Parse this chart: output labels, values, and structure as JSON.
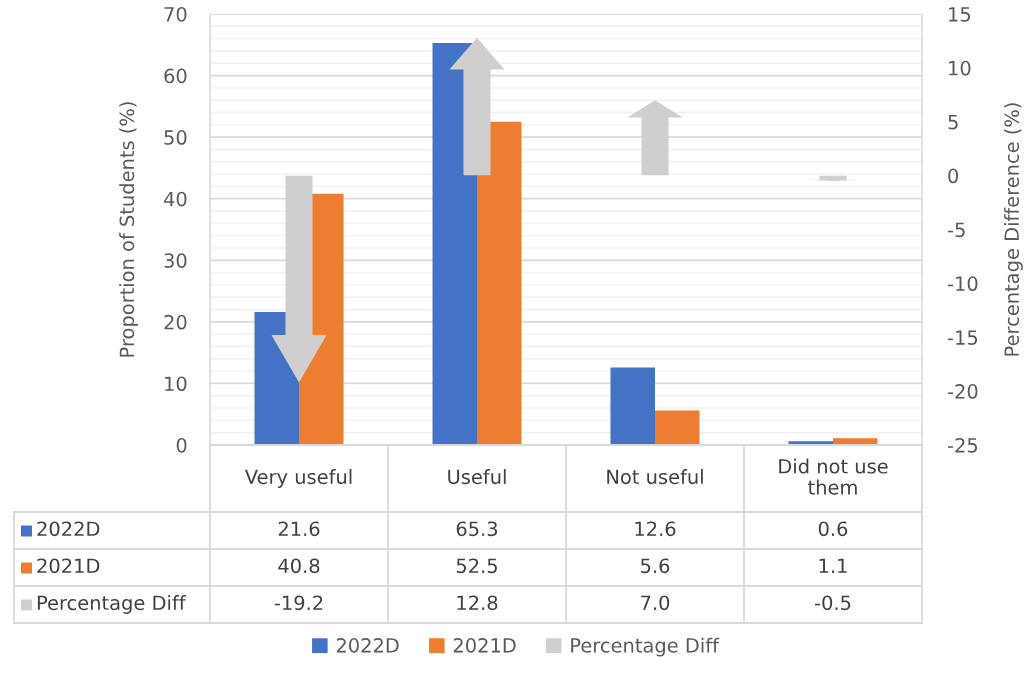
{
  "chart_data": {
    "type": "bar",
    "categories": [
      "Very useful",
      "Useful",
      "Not useful",
      "Did not use them"
    ],
    "series": [
      {
        "name": "2022D",
        "color": "#4472c4",
        "values": [
          21.6,
          65.3,
          12.6,
          0.6
        ],
        "value_labels": [
          "21.6",
          "65.3",
          "12.6",
          "0.6"
        ]
      },
      {
        "name": "2021D",
        "color": "#ed7d31",
        "values": [
          40.8,
          52.5,
          5.6,
          1.1
        ],
        "value_labels": [
          "40.8",
          "52.5",
          "5.6",
          "1.1"
        ]
      },
      {
        "name": "Percentage Diff",
        "type": "bar",
        "axis": "y2",
        "color": "#d0cece",
        "values": [
          -19.2,
          12.8,
          7.0,
          -0.5
        ],
        "value_labels": [
          "-19.2",
          "12.8",
          "7.0",
          "-0.5"
        ]
      }
    ],
    "ylabel": "Proportion of Students (%)",
    "y2label": "Percentage Difference (%)",
    "ylim": [
      0,
      70
    ],
    "yticks": [
      0,
      10,
      20,
      30,
      40,
      50,
      60,
      70
    ],
    "y2lim": [
      -25,
      15
    ],
    "y2ticks": [
      -25,
      -20,
      -15,
      -10,
      -5,
      0,
      5,
      10,
      15
    ],
    "grid": "y",
    "legend": "bottom"
  }
}
